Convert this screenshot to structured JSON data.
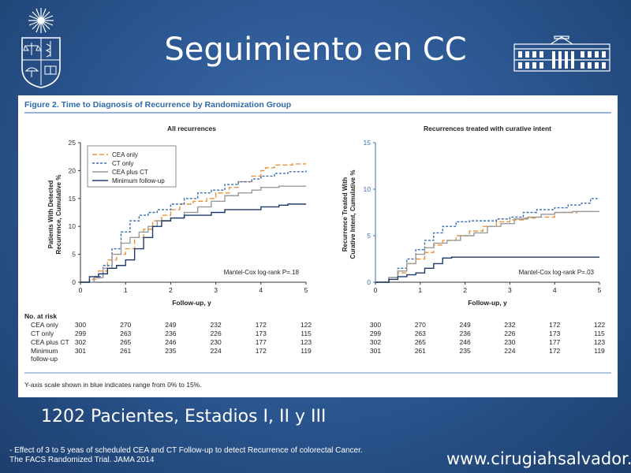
{
  "slide": {
    "title": "Seguimiento en CC",
    "subtitle": "1202 Pacientes, Estadios I, II y III",
    "reference_line1": "- Effect of 3 to 5 yeas of scheduled CEA and CT Follow-up to detect Recurrence of colorectal Cancer.",
    "reference_line2": "The FACS Randomized Trial. JAMA 2014",
    "website": "www.cirugiahsalvador.cl"
  },
  "figure": {
    "caption": "Figure 2. Time to Diagnosis of Recurrence by Randomization Group",
    "footnote": "Y-axis scale shown in blue indicates range from 0% to 15%.",
    "risk_table": {
      "heading": "No. at risk",
      "rows": [
        {
          "label": "CEA only",
          "left": [
            "300",
            "270",
            "249",
            "232",
            "172",
            "122"
          ],
          "right": [
            "300",
            "270",
            "249",
            "232",
            "172",
            "122"
          ]
        },
        {
          "label": "CT only",
          "left": [
            "299",
            "263",
            "236",
            "226",
            "173",
            "115"
          ],
          "right": [
            "299",
            "263",
            "236",
            "226",
            "173",
            "115"
          ]
        },
        {
          "label": "CEA plus CT",
          "left": [
            "302",
            "265",
            "246",
            "230",
            "177",
            "123"
          ],
          "right": [
            "302",
            "265",
            "246",
            "230",
            "177",
            "123"
          ]
        },
        {
          "label": "Minimum",
          "label2": "follow-up",
          "left": [
            "301",
            "261",
            "235",
            "224",
            "172",
            "119"
          ],
          "right": [
            "301",
            "261",
            "235",
            "224",
            "172",
            "119"
          ]
        }
      ]
    }
  },
  "colors": {
    "cea_only": "#e8923a",
    "ct_only": "#3a6fb5",
    "cea_plus_ct": "#9a9a9a",
    "minimum": "#1f3a6a",
    "blue_axis": "#3a6fb5",
    "caption_rule": "#2f6aa8"
  },
  "chart_data": [
    {
      "type": "line",
      "title": "All recurrences",
      "xlabel": "Follow-up, y",
      "ylabel": "Patients With Detected Recurrence, Cumulative %",
      "ylabel_line1": "Patients With Detected",
      "ylabel_line2": "Recurrence, Cumulative %",
      "xlim": [
        0,
        5
      ],
      "ylim": [
        0,
        25
      ],
      "xticks": [
        0,
        1,
        2,
        3,
        4,
        5
      ],
      "yticks": [
        0,
        5,
        10,
        15,
        20,
        25
      ],
      "annotation": "Mantel-Cox log-rank P=.18",
      "legend_position": "top-left",
      "series": [
        {
          "name": "CEA only",
          "style": "dashed-long",
          "color_key": "cea_only",
          "points": [
            [
              0,
              0
            ],
            [
              0.2,
              0.5
            ],
            [
              0.4,
              2
            ],
            [
              0.6,
              4
            ],
            [
              0.8,
              5
            ],
            [
              1.0,
              6
            ],
            [
              1.2,
              8
            ],
            [
              1.4,
              9.5
            ],
            [
              1.6,
              11
            ],
            [
              1.8,
              12
            ],
            [
              2.0,
              13
            ],
            [
              2.2,
              14
            ],
            [
              2.5,
              14.5
            ],
            [
              2.8,
              15
            ],
            [
              3.0,
              16
            ],
            [
              3.3,
              17
            ],
            [
              3.5,
              18
            ],
            [
              3.8,
              19
            ],
            [
              4.0,
              20
            ],
            [
              4.1,
              20.5
            ],
            [
              4.3,
              21
            ],
            [
              4.6,
              21
            ],
            [
              4.7,
              21.2
            ],
            [
              5.0,
              21.2
            ]
          ]
        },
        {
          "name": "CT only",
          "style": "dashed-short",
          "color_key": "ct_only",
          "points": [
            [
              0,
              0
            ],
            [
              0.3,
              1
            ],
            [
              0.5,
              3
            ],
            [
              0.7,
              6
            ],
            [
              0.9,
              9
            ],
            [
              1.1,
              11
            ],
            [
              1.3,
              12
            ],
            [
              1.5,
              12.5
            ],
            [
              1.7,
              13
            ],
            [
              2.0,
              14
            ],
            [
              2.3,
              15
            ],
            [
              2.6,
              16
            ],
            [
              2.9,
              16.5
            ],
            [
              3.2,
              17.5
            ],
            [
              3.5,
              18
            ],
            [
              3.8,
              18.5
            ],
            [
              4.0,
              19
            ],
            [
              4.3,
              19.5
            ],
            [
              4.6,
              19.8
            ],
            [
              5.0,
              20
            ]
          ]
        },
        {
          "name": "CEA plus CT",
          "style": "solid",
          "color_key": "cea_plus_ct",
          "points": [
            [
              0,
              0
            ],
            [
              0.3,
              0.8
            ],
            [
              0.5,
              2.5
            ],
            [
              0.7,
              5
            ],
            [
              0.9,
              7
            ],
            [
              1.1,
              8
            ],
            [
              1.3,
              9
            ],
            [
              1.5,
              10
            ],
            [
              1.7,
              11
            ],
            [
              2.0,
              11.5
            ],
            [
              2.3,
              12.5
            ],
            [
              2.6,
              13.5
            ],
            [
              2.9,
              14.5
            ],
            [
              3.2,
              15.5
            ],
            [
              3.5,
              16
            ],
            [
              3.8,
              16.5
            ],
            [
              4.0,
              17
            ],
            [
              4.4,
              17.2
            ],
            [
              5.0,
              17.2
            ]
          ]
        },
        {
          "name": "Minimum follow-up",
          "style": "solid",
          "color_key": "minimum",
          "points": [
            [
              0,
              0
            ],
            [
              0.2,
              1
            ],
            [
              0.4,
              1.5
            ],
            [
              0.6,
              2.5
            ],
            [
              0.8,
              3
            ],
            [
              1.0,
              4
            ],
            [
              1.2,
              6
            ],
            [
              1.4,
              8
            ],
            [
              1.6,
              10
            ],
            [
              1.8,
              11
            ],
            [
              2.0,
              11.5
            ],
            [
              2.3,
              12
            ],
            [
              2.6,
              12
            ],
            [
              2.9,
              12.5
            ],
            [
              3.2,
              13
            ],
            [
              3.6,
              13
            ],
            [
              4.0,
              13.5
            ],
            [
              4.4,
              13.8
            ],
            [
              4.6,
              14
            ],
            [
              5.0,
              14
            ]
          ]
        }
      ]
    },
    {
      "type": "line",
      "title": "Recurrences treated with curative intent",
      "xlabel": "Follow-up, y",
      "ylabel": "Recurrence Treated With Curative Intent, Cumulative %",
      "ylabel_line1": "Recurrence Treated With",
      "ylabel_line2": "Curative Intent, Cumulative %",
      "xlim": [
        0,
        5
      ],
      "ylim": [
        0,
        15
      ],
      "xticks": [
        0,
        1,
        2,
        3,
        4,
        5
      ],
      "yticks": [
        0,
        5,
        10,
        15
      ],
      "annotation": "Mantel-Cox log-rank P=.03",
      "series": [
        {
          "name": "CEA only",
          "style": "dashed-long",
          "color_key": "cea_only",
          "points": [
            [
              0,
              0
            ],
            [
              0.3,
              0.5
            ],
            [
              0.5,
              1
            ],
            [
              0.7,
              2
            ],
            [
              0.9,
              2.5
            ],
            [
              1.1,
              3.2
            ],
            [
              1.3,
              4
            ],
            [
              1.5,
              4.5
            ],
            [
              1.8,
              5
            ],
            [
              2.1,
              5.5
            ],
            [
              2.4,
              6
            ],
            [
              2.7,
              6.5
            ],
            [
              3.0,
              6.7
            ],
            [
              3.3,
              6.9
            ],
            [
              3.6,
              7
            ],
            [
              4.0,
              7.5
            ],
            [
              4.5,
              7.6
            ],
            [
              5.0,
              7.6
            ]
          ]
        },
        {
          "name": "CT only",
          "style": "dashed-short",
          "color_key": "ct_only",
          "points": [
            [
              0,
              0
            ],
            [
              0.3,
              0.5
            ],
            [
              0.5,
              1.5
            ],
            [
              0.7,
              2.5
            ],
            [
              0.9,
              3.5
            ],
            [
              1.1,
              4.5
            ],
            [
              1.3,
              5.3
            ],
            [
              1.5,
              6
            ],
            [
              1.8,
              6.5
            ],
            [
              2.1,
              6.6
            ],
            [
              2.4,
              6.6
            ],
            [
              2.7,
              6.8
            ],
            [
              3.0,
              7
            ],
            [
              3.3,
              7.5
            ],
            [
              3.6,
              7.8
            ],
            [
              4.0,
              8
            ],
            [
              4.3,
              8.3
            ],
            [
              4.6,
              8.5
            ],
            [
              4.8,
              9
            ],
            [
              5.0,
              9
            ]
          ]
        },
        {
          "name": "CEA plus CT",
          "style": "solid",
          "color_key": "cea_plus_ct",
          "points": [
            [
              0,
              0
            ],
            [
              0.3,
              0.5
            ],
            [
              0.5,
              1.2
            ],
            [
              0.7,
              2
            ],
            [
              0.9,
              3
            ],
            [
              1.1,
              3.7
            ],
            [
              1.3,
              4.2
            ],
            [
              1.6,
              4.5
            ],
            [
              1.9,
              5
            ],
            [
              2.2,
              5.3
            ],
            [
              2.5,
              6
            ],
            [
              2.8,
              6.3
            ],
            [
              3.1,
              6.8
            ],
            [
              3.4,
              7
            ],
            [
              3.7,
              7.3
            ],
            [
              4.0,
              7.5
            ],
            [
              4.4,
              7.6
            ],
            [
              5.0,
              7.6
            ]
          ]
        },
        {
          "name": "Minimum follow-up",
          "style": "solid",
          "color_key": "minimum",
          "points": [
            [
              0,
              0
            ],
            [
              0.3,
              0.3
            ],
            [
              0.5,
              0.6
            ],
            [
              0.7,
              0.8
            ],
            [
              0.9,
              1
            ],
            [
              1.1,
              1.5
            ],
            [
              1.3,
              2
            ],
            [
              1.5,
              2.6
            ],
            [
              1.7,
              2.7
            ],
            [
              2.0,
              2.7
            ],
            [
              3.0,
              2.7
            ],
            [
              4.0,
              2.7
            ],
            [
              5.0,
              2.7
            ]
          ]
        }
      ]
    }
  ]
}
